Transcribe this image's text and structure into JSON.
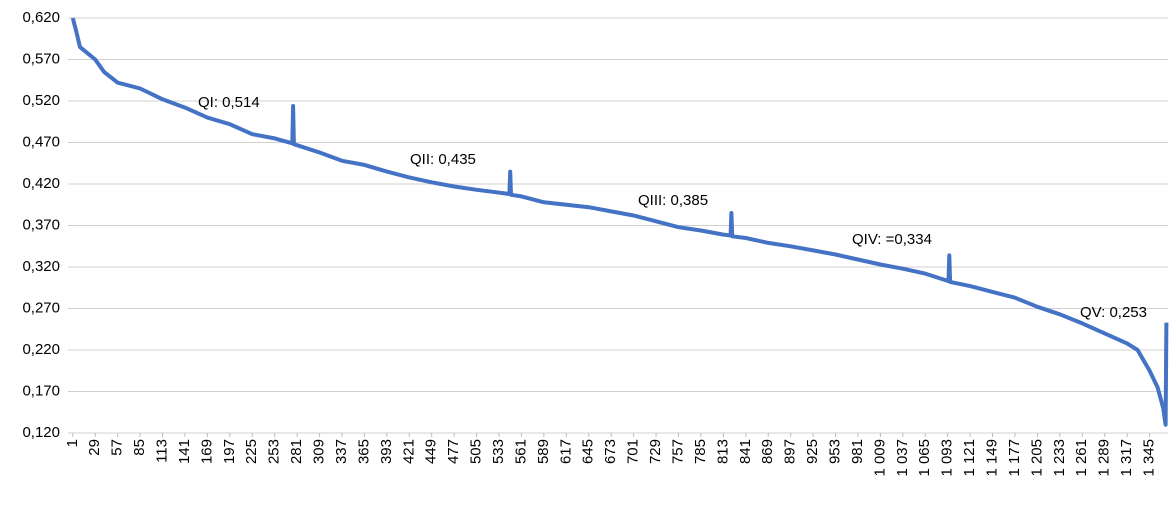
{
  "chart_data": {
    "type": "line",
    "color": "#4472c4",
    "grid": true,
    "x": [
      1,
      5,
      10,
      29,
      40,
      57,
      85,
      113,
      141,
      169,
      197,
      225,
      253,
      275,
      276,
      277,
      309,
      337,
      365,
      393,
      421,
      449,
      477,
      505,
      530,
      546,
      547,
      548,
      561,
      589,
      617,
      645,
      673,
      701,
      729,
      757,
      785,
      813,
      822,
      823,
      824,
      841,
      869,
      897,
      925,
      953,
      981,
      1009,
      1037,
      1065,
      1094,
      1095,
      1096,
      1121,
      1149,
      1177,
      1205,
      1233,
      1261,
      1289,
      1317,
      1330,
      1345,
      1355,
      1362,
      1365,
      1366
    ],
    "values": [
      0.62,
      0.605,
      0.585,
      0.57,
      0.555,
      0.542,
      0.535,
      0.522,
      0.512,
      0.5,
      0.492,
      0.48,
      0.475,
      0.469,
      0.514,
      0.468,
      0.458,
      0.448,
      0.443,
      0.435,
      0.428,
      0.422,
      0.417,
      0.413,
      0.41,
      0.408,
      0.435,
      0.407,
      0.405,
      0.398,
      0.395,
      0.392,
      0.387,
      0.382,
      0.375,
      0.368,
      0.364,
      0.359,
      0.358,
      0.385,
      0.357,
      0.355,
      0.349,
      0.345,
      0.34,
      0.335,
      0.329,
      0.323,
      0.318,
      0.312,
      0.303,
      0.334,
      0.302,
      0.297,
      0.29,
      0.283,
      0.272,
      0.263,
      0.252,
      0.24,
      0.228,
      0.22,
      0.195,
      0.175,
      0.15,
      0.13,
      0.253
    ],
    "xlim": [
      -5,
      1368
    ],
    "ylim": [
      0.12,
      0.62
    ],
    "yticks": [
      {
        "value": 0.12,
        "label": "0,120"
      },
      {
        "value": 0.17,
        "label": "0,170"
      },
      {
        "value": 0.22,
        "label": "0,220"
      },
      {
        "value": 0.27,
        "label": "0,270"
      },
      {
        "value": 0.32,
        "label": "0,320"
      },
      {
        "value": 0.37,
        "label": "0,370"
      },
      {
        "value": 0.42,
        "label": "0,420"
      },
      {
        "value": 0.47,
        "label": "0,470"
      },
      {
        "value": 0.52,
        "label": "0,520"
      },
      {
        "value": 0.57,
        "label": "0,570"
      },
      {
        "value": 0.62,
        "label": "0,620"
      }
    ],
    "xticks": [
      1,
      29,
      57,
      85,
      113,
      141,
      169,
      197,
      225,
      253,
      281,
      309,
      337,
      365,
      393,
      421,
      449,
      477,
      505,
      533,
      561,
      589,
      617,
      645,
      673,
      701,
      729,
      757,
      785,
      813,
      841,
      869,
      897,
      925,
      953,
      981,
      {
        "value": 1009,
        "label": "1 009"
      },
      {
        "value": 1037,
        "label": "1 037"
      },
      {
        "value": 1065,
        "label": "1 065"
      },
      {
        "value": 1093,
        "label": "1 093"
      },
      {
        "value": 1121,
        "label": "1 121"
      },
      {
        "value": 1149,
        "label": "1 149"
      },
      {
        "value": 1177,
        "label": "1 177"
      },
      {
        "value": 1205,
        "label": "1 205"
      },
      {
        "value": 1233,
        "label": "1 233"
      },
      {
        "value": 1261,
        "label": "1 261"
      },
      {
        "value": 1289,
        "label": "1 289"
      },
      {
        "value": 1317,
        "label": "1 317"
      },
      {
        "value": 1345,
        "label": "1 345"
      }
    ],
    "annotations": [
      "QI: 0,514",
      "QII: 0,435",
      "QIII: 0,385",
      "QIV: =0,334",
      "QV: 0,253"
    ]
  }
}
